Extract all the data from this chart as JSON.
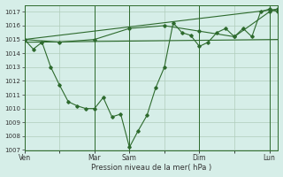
{
  "title": "",
  "xlabel": "Pression niveau de la mer( hPa )",
  "ylabel": "",
  "bg_color": "#d6eee8",
  "line_color": "#2d6a2d",
  "grid_color": "#b0ccbb",
  "ylim": [
    1007,
    1017.5
  ],
  "yticks": [
    1007,
    1008,
    1009,
    1010,
    1011,
    1012,
    1013,
    1014,
    1015,
    1016,
    1017
  ],
  "day_labels": [
    "Ven",
    "",
    "Mar",
    "Sam",
    "",
    "Dim",
    "",
    "Lun"
  ],
  "day_positions": [
    0,
    4,
    8,
    12,
    16,
    20,
    24,
    28
  ],
  "trend_line": [
    [
      0,
      1015.0
    ],
    [
      29,
      1017.2
    ]
  ],
  "flat_line": [
    [
      0,
      1014.8
    ],
    [
      29,
      1015.0
    ]
  ],
  "main_line": [
    [
      0,
      1015.0
    ],
    [
      1,
      1014.3
    ],
    [
      2,
      1014.8
    ],
    [
      3,
      1013.0
    ],
    [
      4,
      1011.7
    ],
    [
      5,
      1010.5
    ],
    [
      6,
      1010.2
    ],
    [
      7,
      1010.0
    ],
    [
      8,
      1010.0
    ],
    [
      9,
      1010.8
    ],
    [
      10,
      1009.4
    ],
    [
      11,
      1009.6
    ],
    [
      12,
      1007.2
    ],
    [
      13,
      1008.4
    ],
    [
      14,
      1009.5
    ],
    [
      15,
      1011.5
    ],
    [
      16,
      1013.0
    ],
    [
      17,
      1016.2
    ],
    [
      18,
      1015.5
    ],
    [
      19,
      1015.3
    ],
    [
      20,
      1014.5
    ],
    [
      21,
      1014.8
    ],
    [
      22,
      1015.5
    ],
    [
      23,
      1015.8
    ],
    [
      24,
      1015.2
    ],
    [
      25,
      1015.8
    ],
    [
      26,
      1015.2
    ],
    [
      27,
      1017.0
    ],
    [
      28,
      1017.2
    ],
    [
      29,
      1017.0
    ]
  ],
  "upper_line": [
    [
      0,
      1015.0
    ],
    [
      4,
      1014.8
    ],
    [
      8,
      1015.0
    ],
    [
      12,
      1015.8
    ],
    [
      16,
      1016.0
    ],
    [
      20,
      1015.6
    ],
    [
      24,
      1015.2
    ],
    [
      28,
      1017.0
    ],
    [
      29,
      1017.2
    ]
  ]
}
